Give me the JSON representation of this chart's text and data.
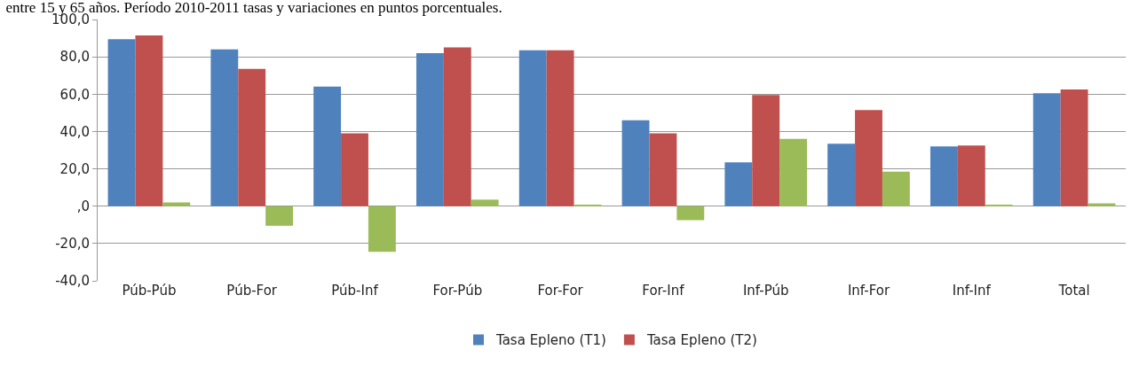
{
  "chart_data": {
    "type": "bar",
    "title": "entre 15 y 65 años. Período 2010-2011 tasas y variaciones en puntos porcentuales.",
    "categories": [
      "Púb-Púb",
      "Púb-For",
      "Púb-Inf",
      "For-Púb",
      "For-For",
      "For-Inf",
      "Inf-Púb",
      "Inf-For",
      "Inf-Inf",
      "Total"
    ],
    "series": [
      {
        "name": "Tasa Epleno (T1)",
        "color": "#4f81bd",
        "values": [
          89.5,
          84,
          64,
          82,
          83.5,
          46,
          23.5,
          33.5,
          32,
          60.5
        ]
      },
      {
        "name": "Tasa Epleno (T2)",
        "color": "#c0504d",
        "values": [
          91.5,
          73.5,
          39,
          85,
          83.5,
          39,
          59.5,
          51.5,
          32.5,
          62.5
        ]
      },
      {
        "color": "#9bbb59",
        "values": [
          2,
          -10.5,
          -24.5,
          3.5,
          0.5,
          -7.5,
          36,
          18.5,
          0.5,
          1.5
        ]
      }
    ],
    "ylim": [
      -40,
      100
    ],
    "yticks": [
      {
        "value": -40,
        "label": "-40,0"
      },
      {
        "value": -20,
        "label": "-20,0"
      },
      {
        "value": 0,
        "label": ",0"
      },
      {
        "value": 20,
        "label": "20,0"
      },
      {
        "value": 40,
        "label": "40,0"
      },
      {
        "value": 60,
        "label": "60,0"
      },
      {
        "value": 80,
        "label": "80,0"
      },
      {
        "value": 100,
        "label": "100,0"
      }
    ],
    "grid": "y",
    "legend": "bottom"
  }
}
